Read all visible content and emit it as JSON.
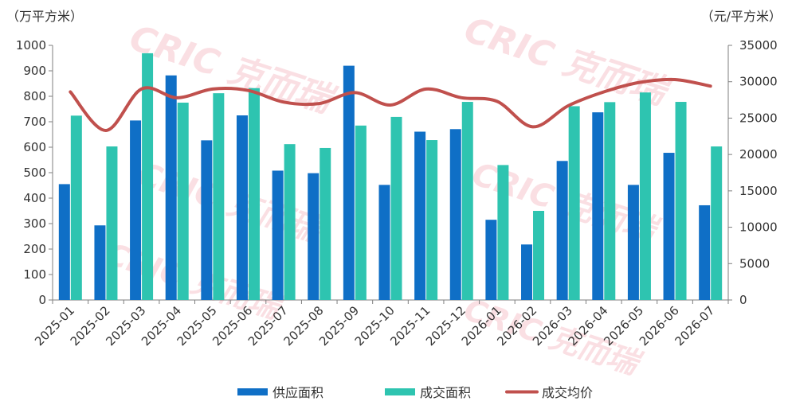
{
  "chart_data": {
    "type": "bar",
    "left_unit": "（万平方米）",
    "right_unit": "（元/平方米）",
    "categories": [
      "2025-01",
      "2025-02",
      "2025-03",
      "2025-04",
      "2025-05",
      "2025-06",
      "2025-07",
      "2025-08",
      "2025-09",
      "2025-10",
      "2025-11",
      "2025-12",
      "2026-01",
      "2026-02",
      "2026-03",
      "2026-04",
      "2026-05",
      "2026-06",
      "2026-07"
    ],
    "y_left": {
      "min": 0,
      "max": 1000,
      "step": 100
    },
    "y_right": {
      "min": 0,
      "max": 35000,
      "step": 5000
    },
    "grid": false,
    "legend_position": "bottom",
    "series": [
      {
        "name": "供应面积",
        "type": "bar",
        "axis": "left",
        "color": "#0f6fc6",
        "values": [
          455,
          293,
          705,
          882,
          627,
          725,
          508,
          498,
          920,
          452,
          661,
          671,
          315,
          218,
          546,
          737,
          452,
          578,
          372
        ]
      },
      {
        "name": "成交面积",
        "type": "bar",
        "axis": "left",
        "color": "#2ec4b0",
        "values": [
          724,
          603,
          969,
          775,
          812,
          832,
          612,
          597,
          685,
          719,
          628,
          778,
          530,
          350,
          761,
          777,
          815,
          778,
          603
        ]
      },
      {
        "name": "成交均价",
        "type": "line",
        "axis": "right",
        "color": "#c0504d",
        "values": [
          28600,
          23300,
          29000,
          27800,
          29000,
          28800,
          27200,
          27000,
          28500,
          26800,
          29000,
          27800,
          27300,
          23800,
          26700,
          28600,
          29900,
          30300,
          29400
        ]
      }
    ],
    "watermark": "CRIC 克而瑞"
  }
}
